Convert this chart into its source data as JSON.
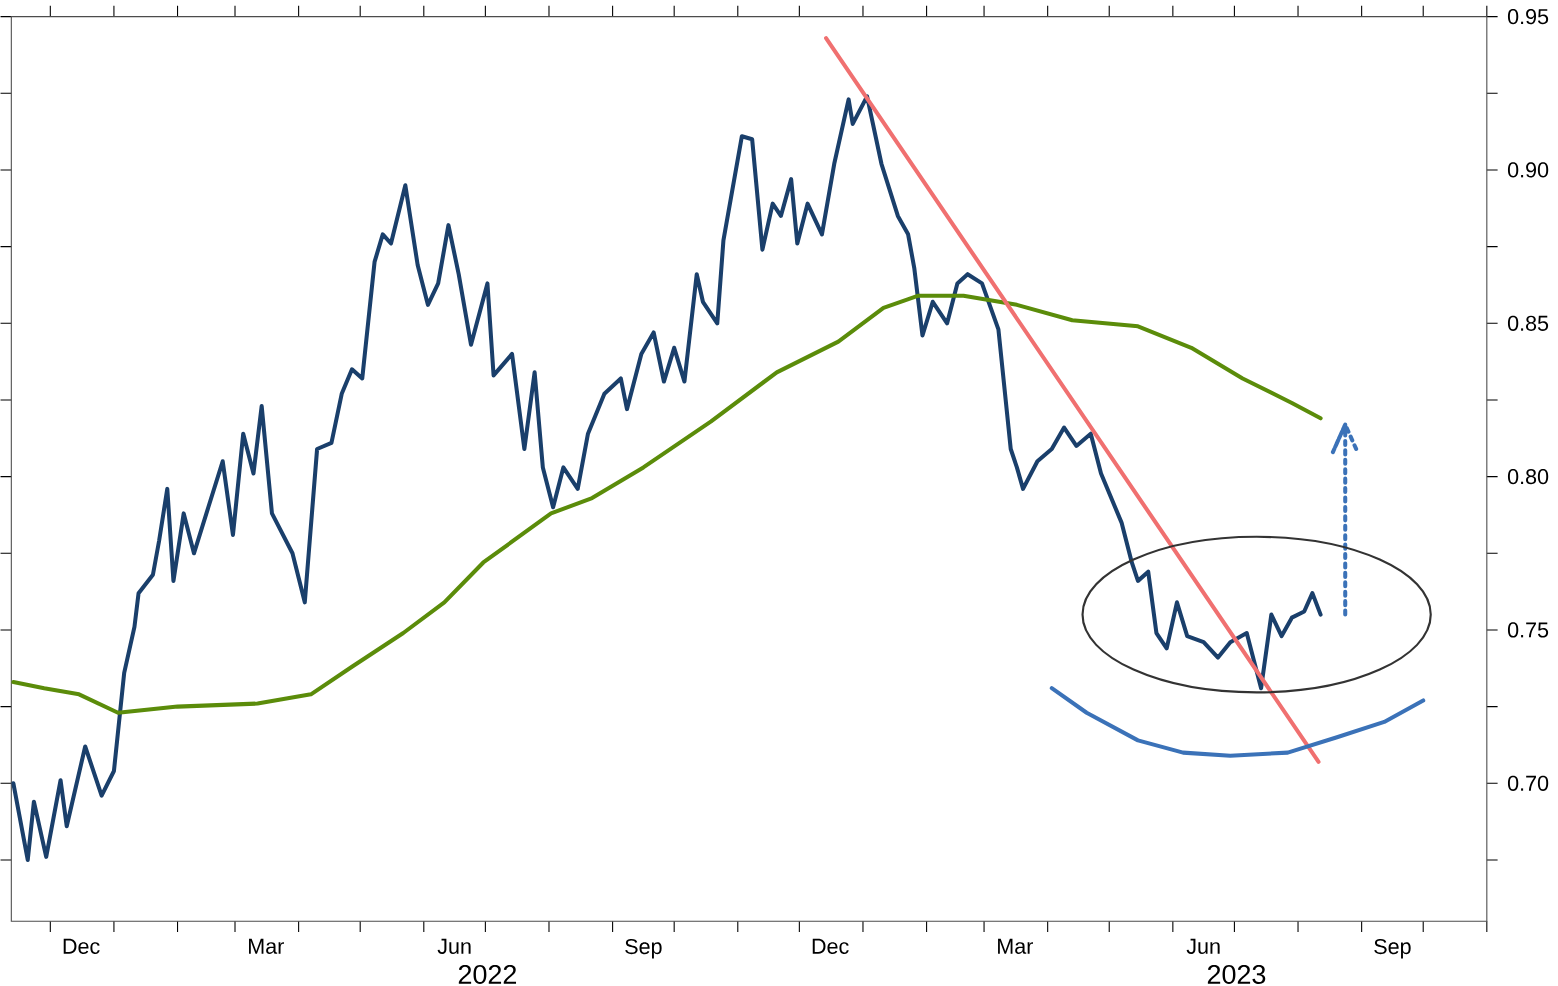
{
  "chart_data": {
    "type": "line",
    "xlim": [
      "2021-11-12",
      "2023-11-01"
    ],
    "ylim": [
      0.655,
      0.95
    ],
    "xticks": [
      {
        "value": "2021-12-01",
        "label": null
      },
      {
        "value": "2022-01-01",
        "label": null
      },
      {
        "value": "2022-02-01",
        "label": null
      },
      {
        "value": "2022-03-01",
        "label": null
      },
      {
        "value": "2022-04-01",
        "label": null
      },
      {
        "value": "2022-05-01",
        "label": null
      },
      {
        "value": "2022-06-01",
        "label": null
      },
      {
        "value": "2022-07-01",
        "label": null
      },
      {
        "value": "2022-08-01",
        "label": null
      },
      {
        "value": "2022-09-01",
        "label": null
      },
      {
        "value": "2022-10-01",
        "label": null
      },
      {
        "value": "2022-11-01",
        "label": null
      },
      {
        "value": "2022-12-01",
        "label": null
      },
      {
        "value": "2023-01-01",
        "label": null
      },
      {
        "value": "2023-02-01",
        "label": null
      },
      {
        "value": "2023-03-01",
        "label": null
      },
      {
        "value": "2023-04-01",
        "label": null
      },
      {
        "value": "2023-05-01",
        "label": null
      },
      {
        "value": "2023-06-01",
        "label": null
      },
      {
        "value": "2023-07-01",
        "label": null
      },
      {
        "value": "2023-08-01",
        "label": null
      },
      {
        "value": "2023-09-01",
        "label": null
      },
      {
        "value": "2023-10-01",
        "label": null
      },
      {
        "value": "2023-11-01",
        "label": null
      },
      {
        "value": "2021-12-16",
        "label": "Dec"
      },
      {
        "value": "2022-03-16",
        "label": "Mar"
      },
      {
        "value": "2022-06-16",
        "label": "Jun"
      },
      {
        "value": "2022-09-16",
        "label": "Sep"
      },
      {
        "value": "2022-12-16",
        "label": "Dec"
      },
      {
        "value": "2023-03-16",
        "label": "Mar"
      },
      {
        "value": "2023-06-16",
        "label": "Jun"
      },
      {
        "value": "2023-09-16",
        "label": "Sep"
      }
    ],
    "yticks": [
      {
        "value": 0.7,
        "label": "0.70"
      },
      {
        "value": 0.75,
        "label": "0.75"
      },
      {
        "value": 0.8,
        "label": "0.80"
      },
      {
        "value": 0.85,
        "label": "0.85"
      },
      {
        "value": 0.9,
        "label": "0.90"
      },
      {
        "value": 0.95,
        "label": "0.95"
      },
      {
        "value": 0.675,
        "label": null
      },
      {
        "value": 0.725,
        "label": null
      },
      {
        "value": 0.775,
        "label": null
      },
      {
        "value": 0.825,
        "label": null
      },
      {
        "value": 0.875,
        "label": null
      },
      {
        "value": 0.925,
        "label": null
      }
    ],
    "annotations": [
      "2022",
      "2023"
    ],
    "series": [
      {
        "color": "#1a3f6b",
        "x": [
          "2021-11-13",
          "2021-11-20",
          "2021-11-23",
          "2021-11-29",
          "2021-12-06",
          "2021-12-09",
          "2021-12-18",
          "2021-12-26",
          "2022-01-01",
          "2022-01-06",
          "2022-01-11",
          "2022-01-13",
          "2022-01-20",
          "2022-01-23",
          "2022-01-27",
          "2022-01-30",
          "2022-02-04",
          "2022-02-09",
          "2022-02-16",
          "2022-02-23",
          "2022-02-28",
          "2022-03-05",
          "2022-03-10",
          "2022-03-14",
          "2022-03-19",
          "2022-03-29",
          "2022-04-04",
          "2022-04-10",
          "2022-04-17",
          "2022-04-22",
          "2022-04-27",
          "2022-05-02",
          "2022-05-08",
          "2022-05-12",
          "2022-05-16",
          "2022-05-23",
          "2022-05-29",
          "2022-06-03",
          "2022-06-08",
          "2022-06-13",
          "2022-06-18",
          "2022-06-24",
          "2022-07-02",
          "2022-07-05",
          "2022-07-14",
          "2022-07-20",
          "2022-07-25",
          "2022-07-29",
          "2022-08-03",
          "2022-08-08",
          "2022-08-15",
          "2022-08-20",
          "2022-08-28",
          "2022-09-05",
          "2022-09-08",
          "2022-09-15",
          "2022-09-21",
          "2022-09-26",
          "2022-10-01",
          "2022-10-06",
          "2022-10-12",
          "2022-10-15",
          "2022-10-22",
          "2022-10-25",
          "2022-11-03",
          "2022-11-08",
          "2022-11-13",
          "2022-11-18",
          "2022-11-22",
          "2022-11-27",
          "2022-11-30",
          "2022-12-05",
          "2022-12-12",
          "2022-12-18",
          "2022-12-25",
          "2022-12-27",
          "2023-01-03",
          "2023-01-10",
          "2023-01-18",
          "2023-01-23",
          "2023-01-26",
          "2023-01-30",
          "2023-02-04",
          "2023-02-11",
          "2023-02-16",
          "2023-02-21",
          "2023-02-28",
          "2023-03-08",
          "2023-03-14",
          "2023-03-17",
          "2023-03-20",
          "2023-03-27",
          "2023-04-03",
          "2023-04-09",
          "2023-04-15",
          "2023-04-22",
          "2023-04-27",
          "2023-05-07",
          "2023-05-12",
          "2023-05-15",
          "2023-05-20",
          "2023-05-24",
          "2023-05-29",
          "2023-06-03",
          "2023-06-08",
          "2023-06-16",
          "2023-06-23",
          "2023-06-29",
          "2023-07-07",
          "2023-07-14",
          "2023-07-19",
          "2023-07-24",
          "2023-07-29",
          "2023-08-04",
          "2023-08-08",
          "2023-08-12"
        ],
        "values": [
          0.7,
          0.675,
          0.694,
          0.676,
          0.701,
          0.686,
          0.712,
          0.696,
          0.704,
          0.736,
          0.751,
          0.762,
          0.768,
          0.779,
          0.796,
          0.766,
          0.788,
          0.775,
          0.79,
          0.805,
          0.781,
          0.814,
          0.801,
          0.823,
          0.788,
          0.775,
          0.759,
          0.809,
          0.811,
          0.827,
          0.835,
          0.832,
          0.87,
          0.879,
          0.876,
          0.895,
          0.869,
          0.856,
          0.863,
          0.882,
          0.866,
          0.843,
          0.863,
          0.833,
          0.84,
          0.809,
          0.834,
          0.803,
          0.79,
          0.803,
          0.796,
          0.814,
          0.827,
          0.832,
          0.822,
          0.84,
          0.847,
          0.831,
          0.842,
          0.831,
          0.866,
          0.857,
          0.85,
          0.877,
          0.911,
          0.91,
          0.874,
          0.889,
          0.885,
          0.897,
          0.876,
          0.889,
          0.879,
          0.902,
          0.923,
          0.915,
          0.924,
          0.902,
          0.885,
          0.879,
          0.868,
          0.846,
          0.857,
          0.85,
          0.863,
          0.866,
          0.863,
          0.848,
          0.809,
          0.803,
          0.796,
          0.805,
          0.809,
          0.816,
          0.81,
          0.814,
          0.801,
          0.785,
          0.772,
          0.766,
          0.769,
          0.749,
          0.744,
          0.759,
          0.748,
          0.746,
          0.741,
          0.746,
          0.749,
          0.731,
          0.755,
          0.748,
          0.754,
          0.756,
          0.762,
          0.755
        ]
      },
      {
        "color": "#5b8c0a",
        "x": [
          "2021-11-13",
          "2021-11-28",
          "2021-12-15",
          "2022-01-03",
          "2022-02-01",
          "2022-03-12",
          "2022-04-07",
          "2022-04-27",
          "2022-05-22",
          "2022-06-11",
          "2022-06-30",
          "2022-08-02",
          "2022-08-22",
          "2022-09-16",
          "2022-10-19",
          "2022-11-20",
          "2022-12-20",
          "2023-01-11",
          "2023-01-28",
          "2023-02-19",
          "2023-03-17",
          "2023-04-13",
          "2023-05-15",
          "2023-06-10",
          "2023-07-05",
          "2023-07-29",
          "2023-08-12"
        ],
        "values": [
          0.733,
          0.731,
          0.729,
          0.723,
          0.725,
          0.726,
          0.729,
          0.738,
          0.749,
          0.759,
          0.772,
          0.788,
          0.793,
          0.803,
          0.818,
          0.834,
          0.844,
          0.855,
          0.859,
          0.859,
          0.856,
          0.851,
          0.849,
          0.842,
          0.832,
          0.824,
          0.819
        ]
      },
      {
        "color": "#f07070",
        "x": [
          "2022-12-14",
          "2023-08-11"
        ],
        "values": [
          0.943,
          0.707
        ]
      },
      {
        "color": "#3b72b8",
        "x": [
          "2023-04-03",
          "2023-04-20",
          "2023-05-15",
          "2023-06-06",
          "2023-06-29",
          "2023-07-27",
          "2023-08-20",
          "2023-09-12",
          "2023-10-01"
        ],
        "values": [
          0.731,
          0.723,
          0.714,
          0.71,
          0.709,
          0.71,
          0.715,
          0.72,
          0.727
        ]
      },
      {
        "color": "#3b72b8",
        "line_style": "dotted",
        "x": [
          "2023-08-24",
          "2023-08-24",
          "2023-08-18",
          "2023-08-24",
          "2023-08-30"
        ],
        "values": [
          0.755,
          0.817,
          0.808,
          0.817,
          0.808
        ]
      }
    ]
  }
}
